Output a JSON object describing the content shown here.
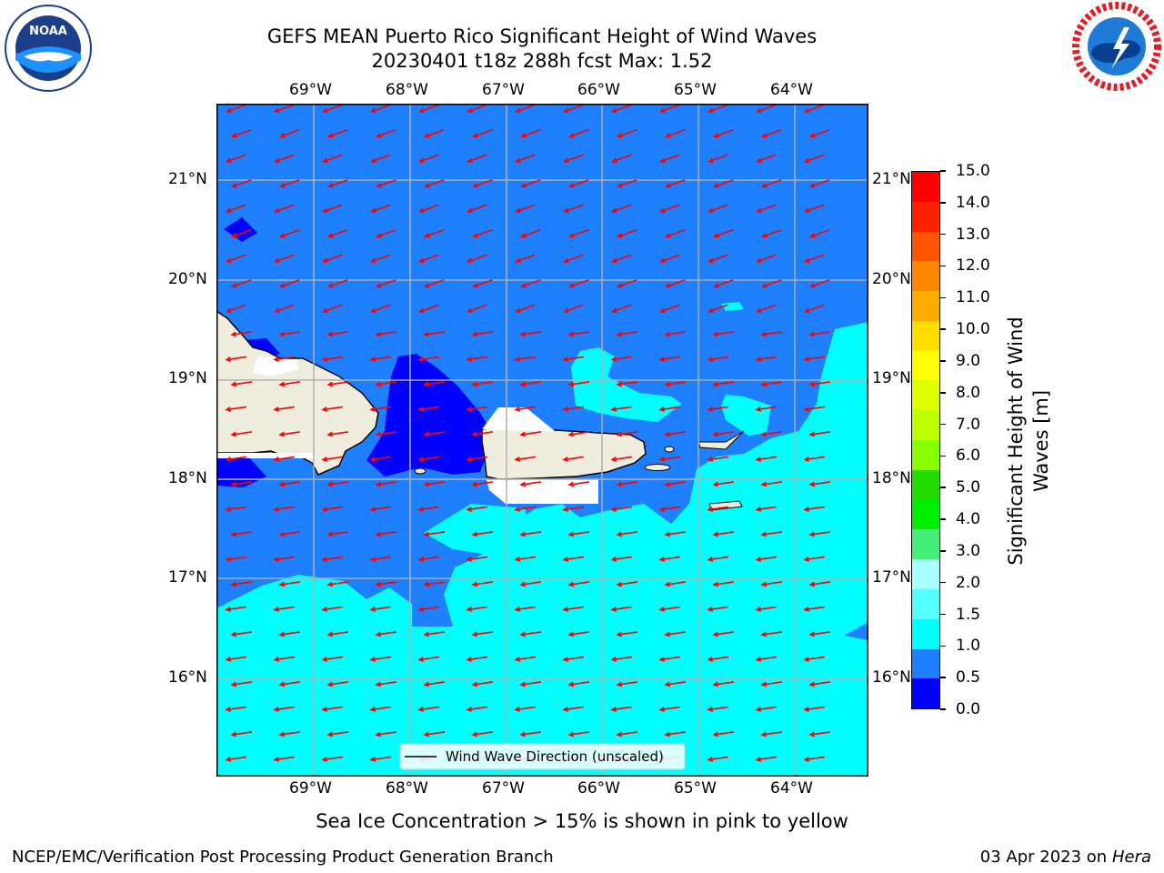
{
  "header": {
    "title_line1": "GEFS MEAN Puerto Rico Significant Height of Wind Waves",
    "title_line2": "20230401 t18z 288h fcst   Max: 1.52"
  },
  "logos": {
    "noaa_text": "NOAA",
    "noaa_ring_text": "NATIONAL OCEANIC AND ATMOSPHERIC ADMINISTRATION · U.S. DEPARTMENT OF COMMERCE",
    "nws_ring_text": "NATIONAL WEATHER SERVICE"
  },
  "map": {
    "lon_labels": [
      "69°W",
      "68°W",
      "67°W",
      "66°W",
      "65°W",
      "64°W"
    ],
    "lat_labels": [
      "21°N",
      "20°N",
      "19°N",
      "18°N",
      "17°N",
      "16°N"
    ],
    "legend_label": "Wind Wave Direction (unscaled)",
    "colors": {
      "ocean_low": "#0000ff",
      "ocean_mid": "#1f80ff",
      "ocean_high": "#00ffff",
      "land": "#efedde",
      "arrow": "#ff0000",
      "grid": "#b0b0b0"
    }
  },
  "colorbar": {
    "label": "Significant Height of Wind Waves [m]",
    "ticks": [
      "15.0",
      "14.0",
      "13.0",
      "12.0",
      "11.0",
      "10.0",
      "9.0",
      "8.0",
      "7.0",
      "6.0",
      "5.0",
      "4.0",
      "3.0",
      "2.0",
      "1.5",
      "1.0",
      "0.5",
      "0.0"
    ],
    "colors_top_to_bottom": [
      "#ff0000",
      "#ff2200",
      "#ff5500",
      "#ff8800",
      "#ffaa00",
      "#ffdd00",
      "#ffff00",
      "#ddff00",
      "#bbff00",
      "#88ff00",
      "#22dd00",
      "#00ee00",
      "#44ee77",
      "#aaffff",
      "#55ffff",
      "#00ffff",
      "#1f80ff",
      "#0000ff"
    ]
  },
  "notes": {
    "sea_ice": "Sea Ice Concentration > 15% is shown in pink to yellow"
  },
  "footer": {
    "left": "NCEP/EMC/Verification Post Processing Product Generation Branch",
    "right_prefix": "03 Apr 2023 on ",
    "right_host": "Hera"
  }
}
